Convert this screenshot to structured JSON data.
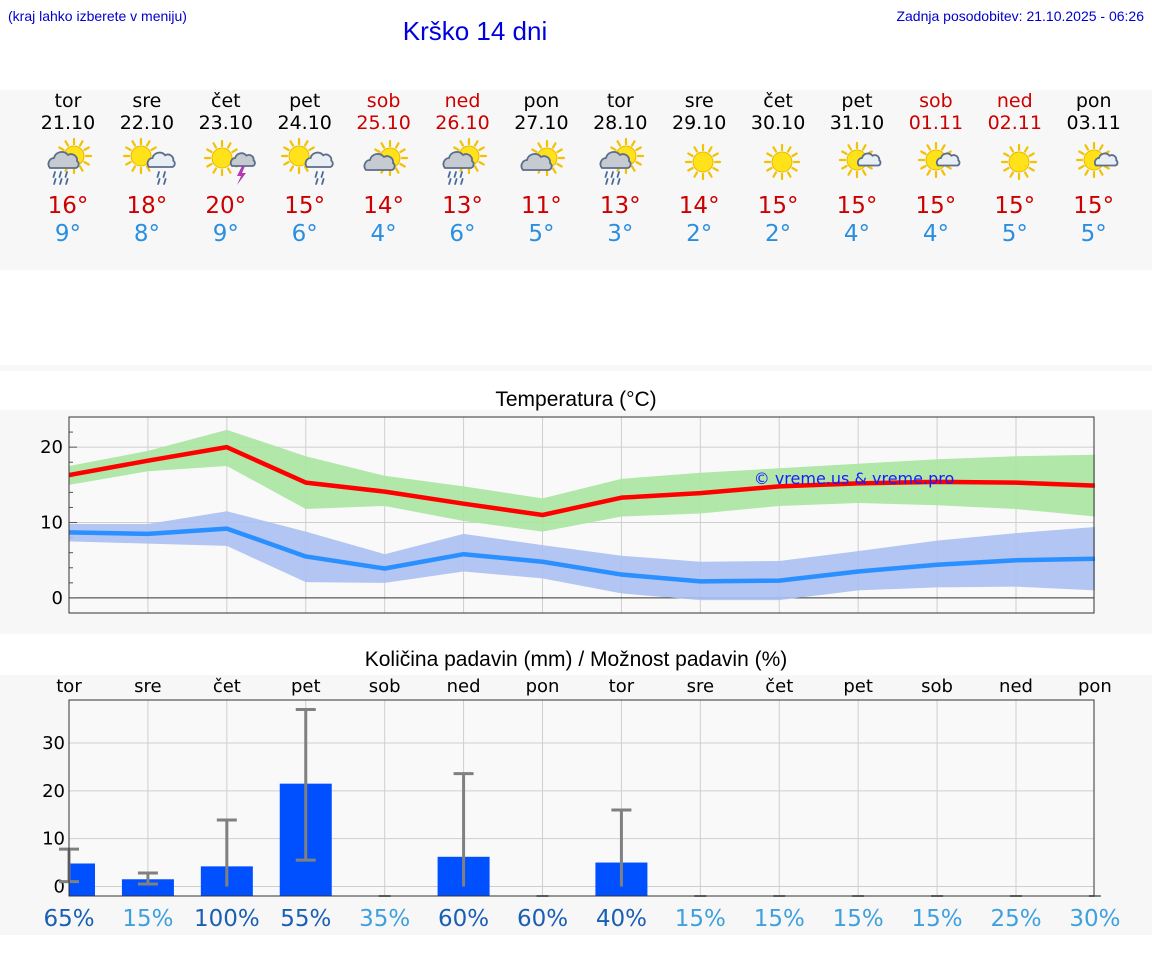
{
  "header": {
    "note": "(kraj lahko izberete v meniju)",
    "title": "Krško 14 dni",
    "updated": "Zadnja posodobitev: 21.10.2025 - 06:26"
  },
  "colors": {
    "max_temp": "#ff0000",
    "min_temp": "#2a8fff",
    "max_band": "#a8e4a0",
    "min_band": "#aabff2",
    "precip_bar": "#0050ff",
    "weekend_text": "#cc0000",
    "precip_prob_high": "#1a5fb4",
    "precip_prob_low": "#3fa0de"
  },
  "days": [
    {
      "name": "tor",
      "date": "21.10",
      "weekend": false,
      "icon": "sun-cloud-rain",
      "max": "16°",
      "min": "9°"
    },
    {
      "name": "sre",
      "date": "22.10",
      "weekend": false,
      "icon": "sun-cloud-light-rain",
      "max": "18°",
      "min": "8°"
    },
    {
      "name": "čet",
      "date": "23.10",
      "weekend": false,
      "icon": "sun-thunder",
      "max": "20°",
      "min": "9°"
    },
    {
      "name": "pet",
      "date": "24.10",
      "weekend": false,
      "icon": "sun-cloud-light-rain",
      "max": "15°",
      "min": "6°"
    },
    {
      "name": "sob",
      "date": "25.10",
      "weekend": true,
      "icon": "sun-cloud",
      "max": "14°",
      "min": "4°"
    },
    {
      "name": "ned",
      "date": "26.10",
      "weekend": true,
      "icon": "sun-cloud-rain",
      "max": "13°",
      "min": "6°"
    },
    {
      "name": "pon",
      "date": "27.10",
      "weekend": false,
      "icon": "sun-cloud",
      "max": "11°",
      "min": "5°"
    },
    {
      "name": "tor",
      "date": "28.10",
      "weekend": false,
      "icon": "sun-cloud-rain",
      "max": "13°",
      "min": "3°"
    },
    {
      "name": "sre",
      "date": "29.10",
      "weekend": false,
      "icon": "sun",
      "max": "14°",
      "min": "2°"
    },
    {
      "name": "čet",
      "date": "30.10",
      "weekend": false,
      "icon": "sun",
      "max": "15°",
      "min": "2°"
    },
    {
      "name": "pet",
      "date": "31.10",
      "weekend": false,
      "icon": "sun-small-cloud",
      "max": "15°",
      "min": "4°"
    },
    {
      "name": "sob",
      "date": "01.11",
      "weekend": true,
      "icon": "sun-small-cloud",
      "max": "15°",
      "min": "4°"
    },
    {
      "name": "ned",
      "date": "02.11",
      "weekend": true,
      "icon": "sun",
      "max": "15°",
      "min": "5°"
    },
    {
      "name": "pon",
      "date": "03.11",
      "weekend": false,
      "icon": "sun-small-cloud",
      "max": "15°",
      "min": "5°"
    }
  ],
  "chart_data": [
    {
      "type": "line",
      "title": "Temperatura (°C)",
      "watermark": "© vreme.us & vreme.pro",
      "ylim": [
        -2,
        24
      ],
      "yticks": [
        0,
        10,
        20
      ],
      "grid": true,
      "x": [
        0,
        1,
        2,
        3,
        4,
        5,
        6,
        7,
        8,
        9,
        10,
        11,
        12,
        13
      ],
      "series": [
        {
          "values": [
            16.3,
            18.2,
            20.0,
            15.3,
            14.1,
            12.5,
            11.0,
            13.3,
            13.9,
            14.8,
            15.2,
            15.4,
            15.3,
            14.9
          ],
          "band_low": [
            15.0,
            16.8,
            17.5,
            11.8,
            12.2,
            10.2,
            8.8,
            10.8,
            11.2,
            12.2,
            12.6,
            12.3,
            11.8,
            10.8
          ],
          "band_high": [
            17.5,
            19.5,
            22.3,
            18.8,
            16.2,
            14.8,
            13.2,
            15.8,
            16.6,
            17.2,
            17.8,
            18.4,
            18.8,
            19.0
          ]
        },
        {
          "values": [
            8.7,
            8.5,
            9.2,
            5.5,
            3.9,
            5.8,
            4.8,
            3.1,
            2.2,
            2.3,
            3.5,
            4.4,
            5.0,
            5.2
          ],
          "band_low": [
            7.5,
            7.2,
            6.9,
            2.1,
            2.0,
            3.5,
            2.6,
            0.6,
            -0.3,
            -0.3,
            1.0,
            1.4,
            1.5,
            1.0
          ],
          "band_high": [
            9.8,
            9.8,
            11.5,
            8.8,
            5.8,
            8.5,
            7.0,
            5.6,
            4.8,
            4.9,
            6.2,
            7.6,
            8.6,
            9.4
          ]
        }
      ]
    },
    {
      "type": "bar",
      "title": "Količina padavin (mm) / Možnost padavin (%)",
      "categories": [
        "tor",
        "sre",
        "čet",
        "pet",
        "sob",
        "ned",
        "pon",
        "tor",
        "sre",
        "čet",
        "pet",
        "sob",
        "ned",
        "pon"
      ],
      "ylim": [
        -2,
        39
      ],
      "yticks": [
        0,
        10,
        20,
        30
      ],
      "values": [
        4.8,
        1.5,
        4.2,
        21.5,
        0,
        6.2,
        0,
        5.0,
        0,
        0,
        0,
        0,
        0,
        0
      ],
      "error_low": [
        1.0,
        0.5,
        0,
        5.5,
        0,
        0,
        0,
        0,
        0,
        0,
        0,
        0,
        0,
        0
      ],
      "error_high": [
        7.8,
        2.8,
        13.9,
        37.0,
        0,
        23.6,
        0,
        16.0,
        0,
        0,
        0,
        0,
        0,
        0
      ],
      "probability": [
        "65%",
        "15%",
        "100%",
        "55%",
        "35%",
        "60%",
        "60%",
        "40%",
        "15%",
        "15%",
        "15%",
        "15%",
        "25%",
        "30%"
      ]
    }
  ]
}
